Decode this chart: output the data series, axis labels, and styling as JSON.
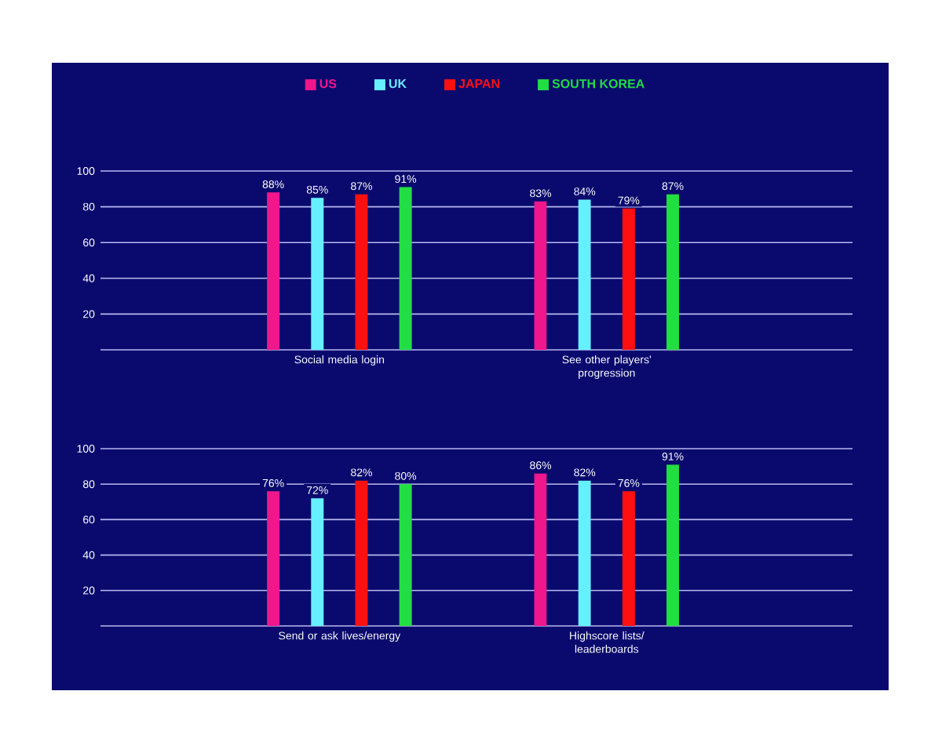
{
  "chart_data": [
    {
      "type": "bar",
      "categories": [
        "Social media login",
        "See other players' progression"
      ],
      "series": [
        {
          "name": "US",
          "color": "#f0168c",
          "values": [
            88,
            83
          ],
          "value_labels": [
            "88%",
            "83%"
          ]
        },
        {
          "name": "UK",
          "color": "#66f0ff",
          "values": [
            85,
            84
          ],
          "value_labels": [
            "85%",
            "84%"
          ]
        },
        {
          "name": "JAPAN",
          "color": "#ff1010",
          "values": [
            87,
            79
          ],
          "value_labels": [
            "87%",
            "79%"
          ]
        },
        {
          "name": "SOUTH KOREA",
          "color": "#22dd44",
          "values": [
            91,
            87
          ],
          "value_labels": [
            "91%",
            "87%"
          ]
        }
      ],
      "ylim": [
        0,
        100
      ],
      "yticks": [
        {
          "value": 0,
          "label": null
        },
        20,
        40,
        60,
        80,
        100
      ],
      "grid": "y",
      "legend": "top"
    },
    {
      "type": "bar",
      "categories": [
        "Send or ask lives/energy",
        "Highscore lists/ leaderboards"
      ],
      "series": [
        {
          "color": "#f0168c",
          "values": [
            76,
            86
          ],
          "value_labels": [
            "76%",
            "86%"
          ]
        },
        {
          "color": "#66f0ff",
          "values": [
            72,
            82
          ],
          "value_labels": [
            "72%",
            "82%"
          ]
        },
        {
          "color": "#ff1010",
          "values": [
            82,
            76
          ],
          "value_labels": [
            "82%",
            "76%"
          ]
        },
        {
          "color": "#22dd44",
          "values": [
            80,
            91
          ],
          "value_labels": [
            "80%",
            "91%"
          ]
        }
      ],
      "ylim": [
        0,
        100
      ],
      "yticks": [
        {
          "value": 0,
          "label": null
        },
        20,
        40,
        60,
        80,
        100
      ],
      "grid": "y"
    }
  ]
}
